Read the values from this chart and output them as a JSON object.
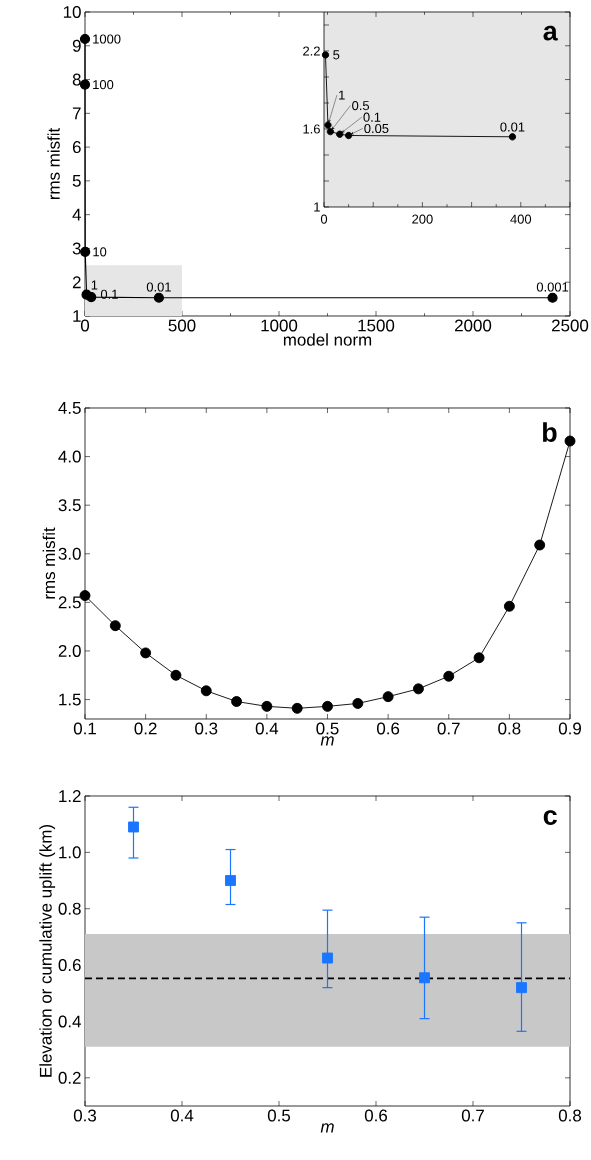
{
  "chart_data": [
    {
      "type": "line",
      "title": "a",
      "xlabel": "model norm",
      "ylabel": "rms misfit",
      "color": "#000000",
      "marker": "circle",
      "line_style": "solid",
      "x": [
        0,
        0,
        1,
        8,
        32,
        381,
        2410
      ],
      "values": [
        9.2,
        7.85,
        2.9,
        1.63,
        1.56,
        1.54,
        1.54
      ],
      "xlim": [
        0,
        2500
      ],
      "ylim": [
        1,
        10
      ],
      "xticks": [
        0,
        500,
        1000,
        1500,
        2000,
        2500
      ],
      "yticks": [
        1,
        2,
        3,
        4,
        5,
        6,
        7,
        8,
        9,
        10
      ],
      "bands": [
        {
          "axis": "x",
          "from": 0,
          "to": 500,
          "color": "#e6e6e6"
        }
      ],
      "annotations": [
        {
          "text": "1000",
          "x": 0,
          "y": 9.2
        },
        {
          "text": "100",
          "x": 0,
          "y": 7.85
        },
        {
          "text": "10",
          "x": 1,
          "y": 2.9
        },
        {
          "text": "1",
          "x": 8,
          "y": 1.63
        },
        {
          "text": "0.1",
          "x": 32,
          "y": 1.56
        },
        {
          "text": "0.01",
          "x": 381,
          "y": 1.54
        },
        {
          "text": "0.001",
          "x": 2410,
          "y": 1.54
        }
      ]
    },
    {
      "type": "line",
      "color": "#000000",
      "marker": "circle",
      "line_style": "solid",
      "x": [
        3,
        8,
        13,
        32,
        50,
        383
      ],
      "values": [
        2.17,
        1.63,
        1.58,
        1.56,
        1.55,
        1.54
      ],
      "xlim": [
        0,
        500
      ],
      "ylim": [
        1,
        2.5
      ],
      "xticks": [
        0,
        {
          "value": 100,
          "label": null
        },
        200,
        {
          "value": 300,
          "label": null
        },
        400,
        {
          "value": 500,
          "label": null
        }
      ],
      "yticks": [
        1,
        {
          "value": 1.2,
          "label": null
        },
        {
          "value": 1.4,
          "label": null
        },
        1.6,
        {
          "value": 1.8,
          "label": null
        },
        {
          "value": 2.0,
          "label": null
        },
        2.2,
        {
          "value": 2.4,
          "label": null
        }
      ],
      "annotations": [
        {
          "text": "5",
          "x": 3,
          "y": 2.17
        },
        {
          "text": "1",
          "x": 8,
          "y": 1.63
        },
        {
          "text": "0.5",
          "x": 13,
          "y": 1.58
        },
        {
          "text": "0.1",
          "x": 32,
          "y": 1.56
        },
        {
          "text": "0.05",
          "x": 50,
          "y": 1.55
        },
        {
          "text": "0.01",
          "x": 383,
          "y": 1.54
        }
      ]
    },
    {
      "type": "line",
      "title": "b",
      "xlabel": "m",
      "ylabel": "rms misfit",
      "color": "#000000",
      "marker": "circle",
      "line_style": "solid",
      "x": [
        0.1,
        0.15,
        0.2,
        0.25,
        0.3,
        0.35,
        0.4,
        0.45,
        0.5,
        0.55,
        0.6,
        0.65,
        0.7,
        0.75,
        0.8,
        0.85,
        0.9
      ],
      "values": [
        2.57,
        2.26,
        1.98,
        1.75,
        1.59,
        1.48,
        1.43,
        1.41,
        1.43,
        1.46,
        1.53,
        1.61,
        1.74,
        1.93,
        2.46,
        3.09,
        4.16
      ],
      "xlim": [
        0.1,
        0.9
      ],
      "ylim": [
        1.3,
        4.5
      ],
      "xticks": [
        0.1,
        0.2,
        0.3,
        0.4,
        0.5,
        0.6,
        0.7,
        0.8,
        0.9
      ],
      "yticks": [
        {
          "value": 1.5,
          "label": "1.5"
        },
        {
          "value": 2,
          "label": "2.0"
        },
        {
          "value": 2.5,
          "label": "2.5"
        },
        {
          "value": 3,
          "label": "3.0"
        },
        {
          "value": 3.5,
          "label": "3.5"
        },
        {
          "value": 4,
          "label": "4.0"
        },
        {
          "value": 4.5,
          "label": "4.5"
        }
      ]
    },
    {
      "type": "scatter",
      "title": "c",
      "xlabel": "m",
      "ylabel": "Elevation or cumulative uplift (km)",
      "color": "#1a75ff",
      "marker": "square",
      "x": [
        0.35,
        0.45,
        0.55,
        0.65,
        0.75
      ],
      "values": [
        1.09,
        0.9,
        0.625,
        0.555,
        0.52
      ],
      "errors": [
        [
          0.98,
          1.16
        ],
        [
          0.815,
          1.01
        ],
        [
          0.52,
          0.795
        ],
        [
          0.41,
          0.77
        ],
        [
          0.365,
          0.75
        ]
      ],
      "xlim": [
        0.3,
        0.8
      ],
      "ylim": [
        0.1,
        1.2
      ],
      "xticks": [
        0.3,
        0.4,
        0.5,
        0.6,
        0.7,
        0.8
      ],
      "yticks": [
        0.2,
        0.4,
        0.6,
        0.8,
        {
          "value": 1,
          "label": "1.0"
        },
        1.2
      ],
      "bands": [
        {
          "axis": "y",
          "from": 0.31,
          "to": 0.71,
          "color": "#c8c8c8"
        }
      ],
      "ref_lines": [
        {
          "axis": "y",
          "value": 0.553,
          "color": "#000000",
          "line_style": "dashed"
        }
      ]
    }
  ]
}
